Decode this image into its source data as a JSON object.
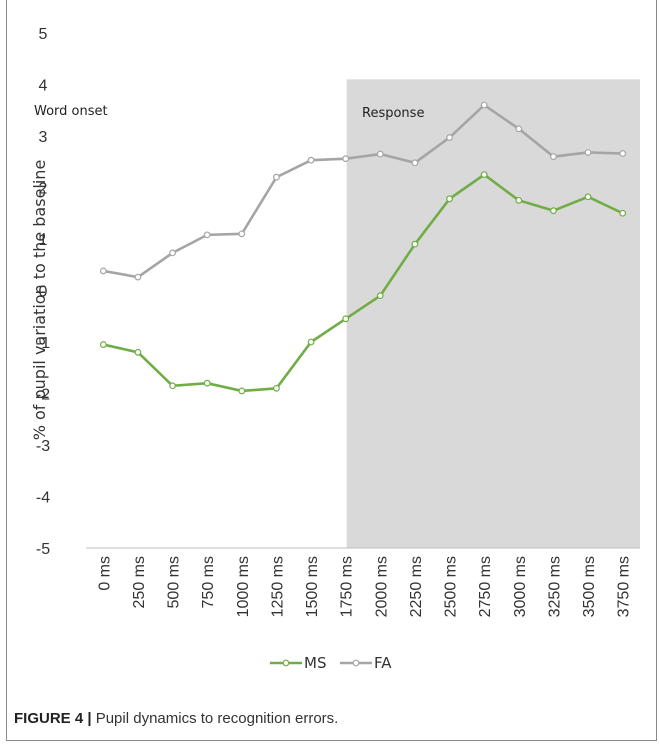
{
  "chart_data": {
    "type": "line",
    "categories": [
      "0 ms",
      "250 ms",
      "500 ms",
      "750 ms",
      "1000 ms",
      "1250 ms",
      "1500 ms",
      "1750 ms",
      "2000 ms",
      "2250 ms",
      "2500 ms",
      "2750 ms",
      "3000 ms",
      "3250 ms",
      "3500 ms",
      "3750 ms"
    ],
    "series": [
      {
        "name": "MS",
        "color": "#70ad47",
        "values": [
          -1.05,
          -1.2,
          -1.85,
          -1.8,
          -1.95,
          -1.9,
          -1.0,
          -0.55,
          -0.1,
          0.9,
          1.78,
          2.25,
          1.75,
          1.55,
          1.82,
          1.5
        ]
      },
      {
        "name": "FA",
        "color": "#a5a5a5",
        "values": [
          0.38,
          0.26,
          0.73,
          1.08,
          1.1,
          2.2,
          2.53,
          2.56,
          2.65,
          2.48,
          2.97,
          3.6,
          3.14,
          2.6,
          2.68,
          2.66
        ]
      }
    ],
    "ylim": [
      -5,
      5
    ],
    "yticks": [
      "-5",
      "-4",
      "-3",
      "-2",
      "-1",
      "0",
      "1",
      "2",
      "3",
      "4",
      "5"
    ],
    "ylabel": "% of pupil variation to the baseline",
    "xlabel": "",
    "shaded_region": {
      "from_category": "1750 ms",
      "to_category": "3750 ms",
      "y_top": 4.1,
      "color": "#d9d9d9"
    },
    "annotations": {
      "onset": "Word onset",
      "response": "Response"
    },
    "grid": false,
    "legend_position": "bottom"
  },
  "caption": {
    "label": "FIGURE 4 |",
    "text": " Pupil dynamics to recognition errors."
  }
}
